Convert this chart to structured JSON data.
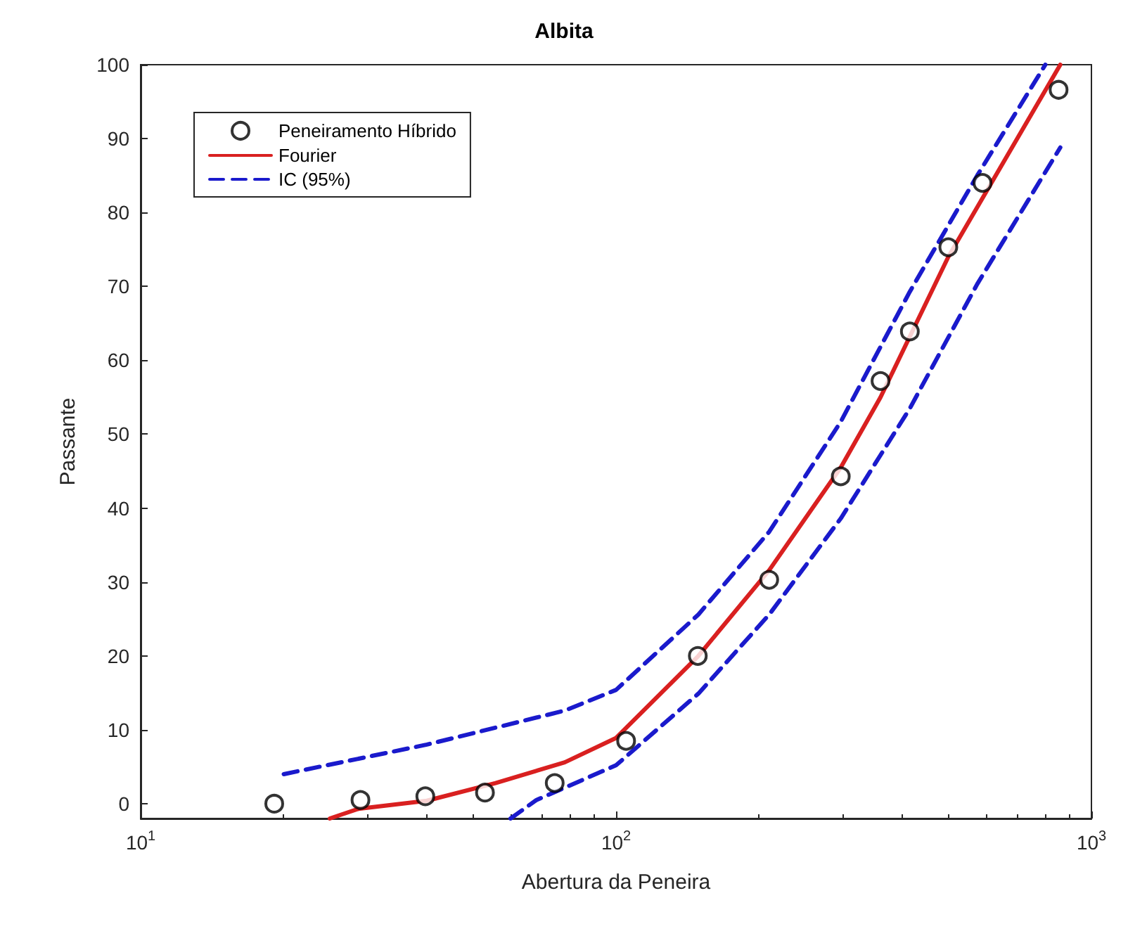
{
  "chart_data": {
    "type": "scatter",
    "title": "Albita",
    "xlabel": "Abertura da Peneira",
    "ylabel": "Passante",
    "log": "x",
    "xlim": [
      10,
      1000
    ],
    "xticks": [
      {
        "value": 10,
        "label": "10$^{1}$"
      },
      {
        "value": 100,
        "label": "10$^{2}$"
      },
      {
        "value": 1000,
        "label": "10$^{3}$"
      }
    ],
    "ylim": [
      -2,
      100
    ],
    "yticks": [
      0,
      10,
      20,
      30,
      40,
      50,
      60,
      70,
      80,
      90,
      100
    ],
    "grid": false,
    "legend": "top left",
    "series": [
      {
        "name": "Peneiramento Híbrido",
        "type": "scatter",
        "marker": "circle",
        "color": "#000000",
        "x": [
          19.1,
          29,
          39.7,
          53,
          74.3,
          105,
          148.6,
          210,
          297,
          360,
          415,
          500,
          590,
          853
        ],
        "values": [
          0,
          0.5,
          1,
          1.5,
          2.8,
          8.5,
          20,
          30.3,
          44.3,
          57.2,
          63.9,
          75.3,
          84,
          96.6
        ]
      },
      {
        "name": "Fourier",
        "type": "line",
        "marker": "none",
        "line_style": "solid",
        "color": "#d92020",
        "x": [
          25,
          28.7,
          40,
          55.8,
          78,
          100,
          149,
          210,
          297,
          360,
          500,
          860
        ],
        "values": [
          -2,
          -0.7,
          0.4,
          2.8,
          5.6,
          8.9,
          20,
          31.6,
          45.5,
          55,
          74,
          100
        ]
      },
      {
        "name": "IC (95%)",
        "type": "line",
        "marker": "none",
        "line_style": "dashed",
        "color": "#1a1acc",
        "x": [
          20,
          40,
          78,
          100,
          149,
          210,
          297,
          415,
          575,
          800
        ],
        "values": [
          4,
          8,
          12.6,
          15.4,
          25.6,
          36.8,
          51.7,
          69.3,
          85,
          100
        ]
      },
      {
        "type": "line",
        "marker": "none",
        "line_style": "dashed",
        "color": "#1a1acc",
        "x": [
          60,
          68,
          100,
          149,
          210,
          297,
          415,
          575,
          860
        ],
        "values": [
          -2,
          0.5,
          5.2,
          14.9,
          25.6,
          38.6,
          53.5,
          70.3,
          88.8
        ]
      }
    ]
  }
}
